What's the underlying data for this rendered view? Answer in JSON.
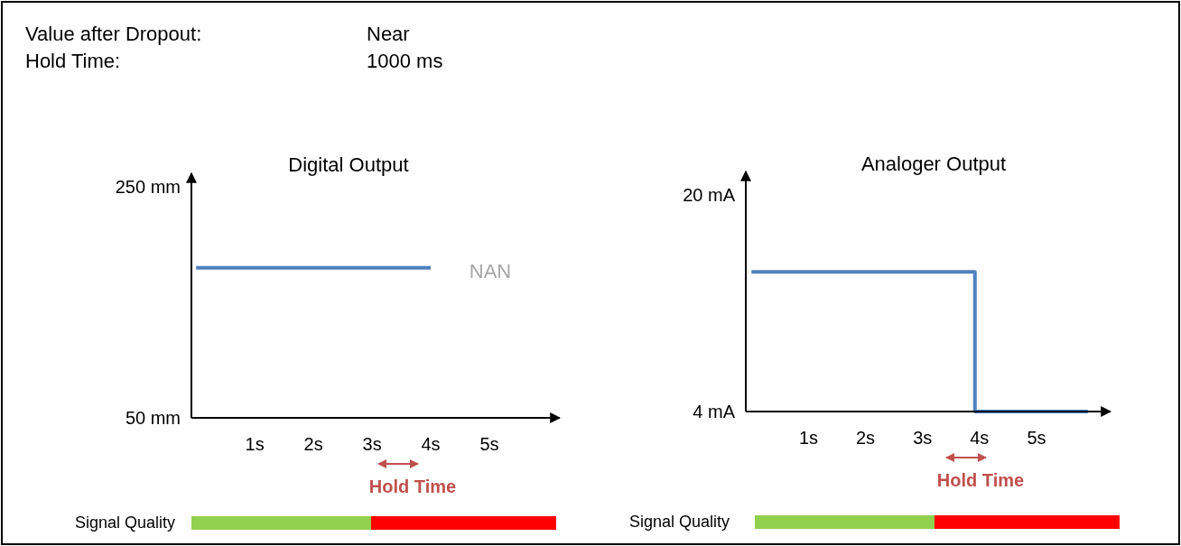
{
  "chart_data": [
    {
      "type": "other",
      "annotations": [
        "Value after Dropout:",
        "Near",
        "Hold Time:",
        "1000 ms"
      ]
    },
    {
      "type": "line",
      "title": "Digital Output",
      "xlim": [
        -0.08,
        6.2
      ],
      "ylim": [
        50,
        262
      ],
      "xticks": [
        {
          "value": 1,
          "label": "1s"
        },
        {
          "value": 2,
          "label": "2s"
        },
        {
          "value": 3,
          "label": "3s"
        },
        {
          "value": 4,
          "label": "4s"
        },
        {
          "value": 5,
          "label": "5s"
        }
      ],
      "yticks": [
        {
          "value": 50,
          "label": "50 mm"
        },
        {
          "value": 250,
          "label": "250 mm"
        }
      ],
      "series": [
        {
          "color": "#4f81bd",
          "x": [
            0,
            4
          ],
          "values": [
            180,
            180
          ]
        }
      ],
      "annotations": [
        "NAN",
        "Hold Time",
        "Signal Quality"
      ]
    },
    {
      "type": "step",
      "title": "Analoger Output",
      "xlim": [
        -0.1,
        6.3
      ],
      "ylim": [
        4,
        21.7
      ],
      "xticks": [
        {
          "value": 1,
          "label": "1s"
        },
        {
          "value": 2,
          "label": "2s"
        },
        {
          "value": 3,
          "label": "3s"
        },
        {
          "value": 4,
          "label": "4s"
        },
        {
          "value": 5,
          "label": "5s"
        }
      ],
      "yticks": [
        {
          "value": 4,
          "label": "4 mA"
        },
        {
          "value": 20,
          "label": "20 mA"
        }
      ],
      "series": [
        {
          "color": "#4f81bd",
          "x": [
            0,
            3.92,
            5.9
          ],
          "values": [
            14.3,
            4,
            4
          ]
        }
      ],
      "annotations": [
        "Hold Time",
        "Signal Quality"
      ]
    }
  ]
}
